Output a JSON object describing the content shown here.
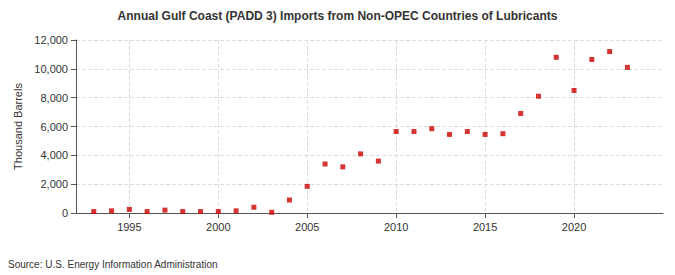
{
  "chart_data": {
    "type": "scatter",
    "title": "Annual Gulf Coast (PADD 3) Imports from Non-OPEC Countries of Lubricants",
    "y_label": "Thousand Barrels",
    "annotations": [
      "Source: U.S. Energy Information Administration"
    ],
    "x": [
      1993,
      1994,
      1995,
      1996,
      1997,
      1998,
      1999,
      2000,
      2001,
      2002,
      2003,
      2004,
      2005,
      2006,
      2007,
      2008,
      2009,
      2010,
      2011,
      2012,
      2013,
      2014,
      2015,
      2016,
      2017,
      2018,
      2019,
      2020,
      2021,
      2022,
      2023
    ],
    "values": [
      100,
      150,
      250,
      100,
      200,
      100,
      100,
      100,
      150,
      400,
      50,
      900,
      1850,
      3400,
      3200,
      4100,
      3600,
      5650,
      5650,
      5850,
      5450,
      5650,
      5450,
      5500,
      6900,
      8100,
      10800,
      8500,
      10650,
      11200,
      10100
    ],
    "color": "#cc0000",
    "marker": "square",
    "xlim": [
      1992,
      2025
    ],
    "xticks": [
      1995,
      2000,
      2005,
      2010,
      2015,
      2020
    ],
    "ylim": [
      0,
      12000
    ],
    "yticks": [
      0,
      {
        "value": 2000,
        "label": "2,000"
      },
      {
        "value": 4000,
        "label": "4,000"
      },
      {
        "value": 6000,
        "label": "6,000"
      },
      {
        "value": 8000,
        "label": "8,000"
      },
      {
        "value": 10000,
        "label": "10,000"
      },
      {
        "value": 12000,
        "label": "12,000"
      }
    ],
    "grid": true
  }
}
